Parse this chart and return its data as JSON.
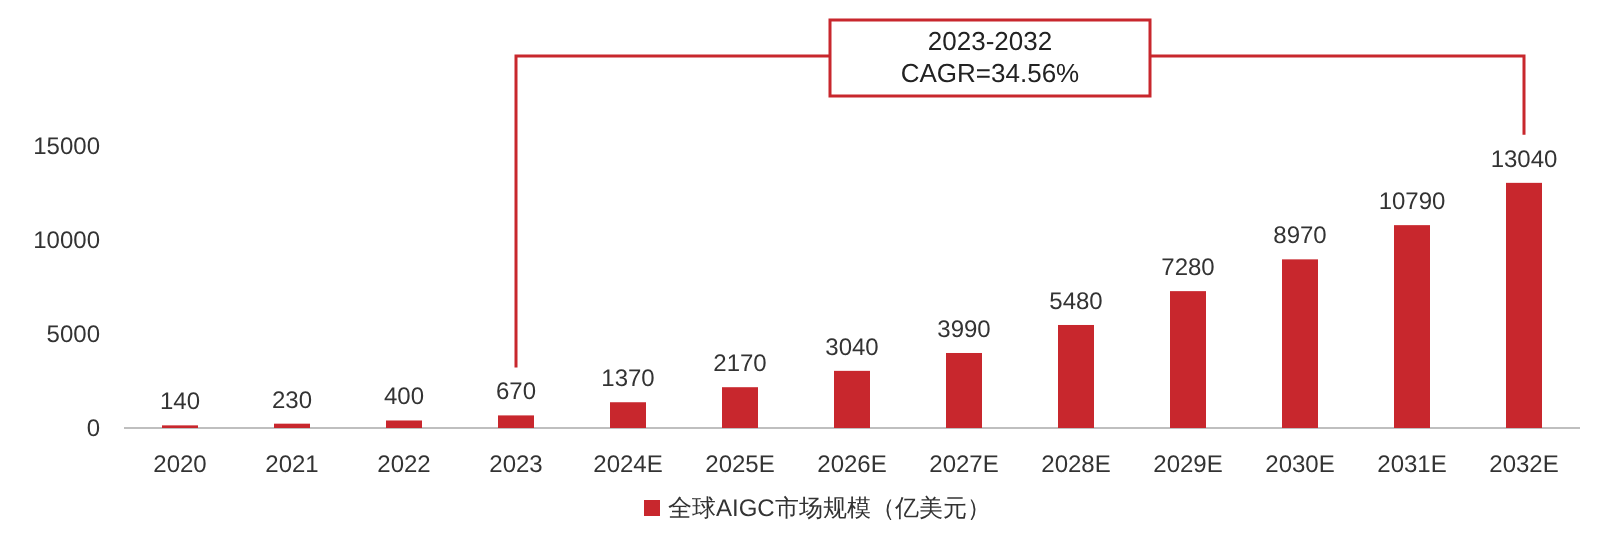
{
  "chart_data": {
    "type": "bar",
    "categories": [
      "2020",
      "2021",
      "2022",
      "2023",
      "2024E",
      "2025E",
      "2026E",
      "2027E",
      "2028E",
      "2029E",
      "2030E",
      "2031E",
      "2032E"
    ],
    "series": [
      {
        "name": "全球AIGC市场规模（亿美元）",
        "color": "#c8272d",
        "values": [
          140,
          230,
          400,
          670,
          1370,
          2170,
          3040,
          3990,
          5480,
          7280,
          8970,
          10790,
          13040
        ]
      }
    ],
    "ylim": [
      0,
      15000
    ],
    "yticks": [
      0,
      5000,
      10000,
      15000
    ],
    "data_labels": true,
    "legend": "bottom",
    "annotations": [
      "2023-2032",
      "CAGR=34.56%"
    ]
  }
}
